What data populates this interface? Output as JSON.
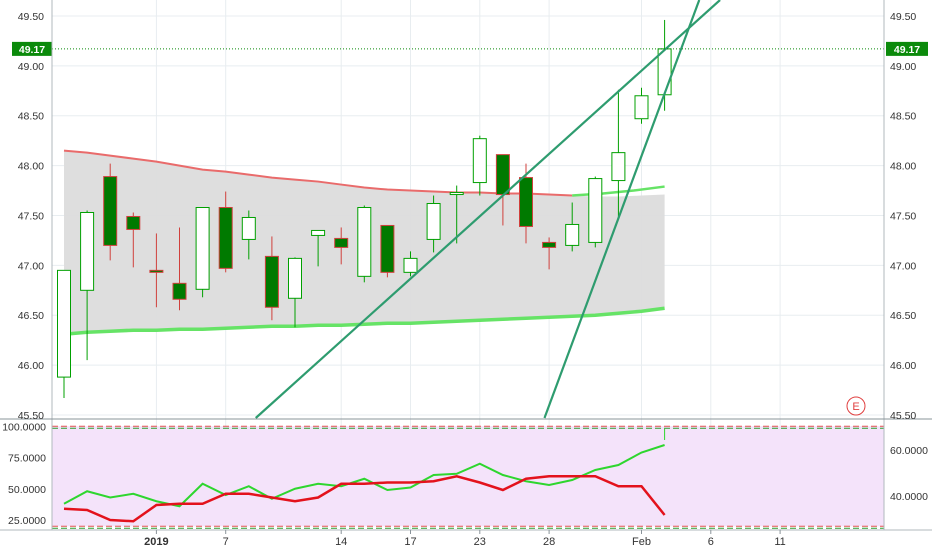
{
  "chart_data": {
    "type": "candlestick",
    "colors": {
      "up": "#00A000",
      "down_fill": "#007A00",
      "down_border": "#D0403C",
      "band_upper": "#E96B6B",
      "band_lower": "#66E366",
      "band_fill": "#DCDCDC",
      "trendline": "#2E9C6F",
      "osc_fill": "#F4E3FA",
      "osc_fast": "#2ED62E",
      "osc_slow": "#E3121C",
      "badge": "#0B8A0B",
      "grid": "#E8EDF0"
    },
    "price_axis": {
      "ylim": [
        45.47,
        49.66
      ],
      "ticks": [
        "45.50",
        "46.00",
        "46.50",
        "47.00",
        "47.50",
        "48.00",
        "48.50",
        "49.00",
        "49.50"
      ],
      "last_price": 49.17,
      "last_price_label": "49.17"
    },
    "x_axis": {
      "ticks": [
        {
          "label": "2019",
          "index": 4
        },
        {
          "label": "7",
          "index": 7
        },
        {
          "label": "14",
          "index": 12
        },
        {
          "label": "17",
          "index": 15
        },
        {
          "label": "23",
          "index": 18
        },
        {
          "label": "28",
          "index": 21
        },
        {
          "label": "Feb",
          "index": 25
        },
        {
          "label": "6",
          "index": 28
        },
        {
          "label": "11",
          "index": 31
        }
      ]
    },
    "candles": [
      {
        "o": 45.88,
        "h": 46.95,
        "l": 45.67,
        "c": 46.95
      },
      {
        "o": 46.75,
        "h": 47.55,
        "l": 46.05,
        "c": 47.53
      },
      {
        "o": 47.89,
        "h": 48.02,
        "l": 47.05,
        "c": 47.2
      },
      {
        "o": 47.49,
        "h": 47.53,
        "l": 46.98,
        "c": 47.36
      },
      {
        "o": 46.95,
        "h": 47.32,
        "l": 46.58,
        "c": 46.93
      },
      {
        "o": 46.82,
        "h": 47.38,
        "l": 46.55,
        "c": 46.66
      },
      {
        "o": 46.76,
        "h": 47.58,
        "l": 46.68,
        "c": 47.58
      },
      {
        "o": 47.58,
        "h": 47.74,
        "l": 46.93,
        "c": 46.97
      },
      {
        "o": 47.26,
        "h": 47.55,
        "l": 47.06,
        "c": 47.48
      },
      {
        "o": 47.09,
        "h": 47.29,
        "l": 46.45,
        "c": 46.58
      },
      {
        "o": 46.67,
        "h": 47.08,
        "l": 46.38,
        "c": 47.07
      },
      {
        "o": 47.3,
        "h": 47.35,
        "l": 46.99,
        "c": 47.35
      },
      {
        "o": 47.27,
        "h": 47.38,
        "l": 47.01,
        "c": 47.18
      },
      {
        "o": 46.89,
        "h": 47.6,
        "l": 46.83,
        "c": 47.58
      },
      {
        "o": 47.4,
        "h": 47.4,
        "l": 46.88,
        "c": 46.93
      },
      {
        "o": 46.93,
        "h": 47.14,
        "l": 46.89,
        "c": 47.07
      },
      {
        "o": 47.26,
        "h": 47.7,
        "l": 47.13,
        "c": 47.62
      },
      {
        "o": 47.72,
        "h": 47.8,
        "l": 47.22,
        "c": 47.73
      },
      {
        "o": 47.83,
        "h": 48.3,
        "l": 47.7,
        "c": 48.27
      },
      {
        "o": 48.11,
        "h": 48.11,
        "l": 47.4,
        "c": 47.71
      },
      {
        "o": 47.88,
        "h": 48.02,
        "l": 47.22,
        "c": 47.39
      },
      {
        "o": 47.23,
        "h": 47.28,
        "l": 46.96,
        "c": 47.18
      },
      {
        "o": 47.2,
        "h": 47.63,
        "l": 47.14,
        "c": 47.41
      },
      {
        "o": 47.23,
        "h": 47.89,
        "l": 47.18,
        "c": 47.87
      },
      {
        "o": 47.85,
        "h": 48.76,
        "l": 47.48,
        "c": 48.13
      },
      {
        "o": 48.47,
        "h": 48.78,
        "l": 48.42,
        "c": 48.7
      },
      {
        "o": 48.71,
        "h": 49.46,
        "l": 48.55,
        "c": 49.17
      }
    ],
    "bands": {
      "upper": [
        48.15,
        48.13,
        48.1,
        48.07,
        48.04,
        48.0,
        47.96,
        47.94,
        47.91,
        47.88,
        47.86,
        47.84,
        47.81,
        47.78,
        47.76,
        47.75,
        47.74,
        47.73,
        47.73,
        47.72,
        47.72,
        47.71,
        47.7,
        47.69,
        47.69,
        47.7,
        47.71
      ],
      "lower": [
        46.31,
        46.33,
        46.34,
        46.35,
        46.35,
        46.36,
        46.36,
        46.37,
        46.38,
        46.39,
        46.39,
        46.4,
        46.4,
        46.41,
        46.42,
        46.42,
        46.43,
        46.44,
        46.45,
        46.46,
        46.47,
        46.48,
        46.49,
        46.5,
        46.52,
        46.54,
        46.57
      ],
      "upper_rising_tail": [
        47.7,
        47.72,
        47.75,
        47.79
      ]
    },
    "trendlines": [
      {
        "from": {
          "x": 8.3,
          "y": 45.47
        },
        "to": {
          "x": 28.4,
          "y": 49.66
        }
      },
      {
        "from": {
          "x": 20.8,
          "y": 45.47
        },
        "to": {
          "x": 27.5,
          "y": 49.66
        }
      }
    ],
    "oscillator": {
      "left_axis": {
        "ticks": [
          "25.0000",
          "50.0000",
          "75.0000",
          "100.0000"
        ],
        "ylim": [
          17,
          105
        ]
      },
      "right_axis": {
        "ticks": [
          "40.0000",
          "60.0000"
        ]
      },
      "upper_level": 100,
      "lower_level": 20,
      "fast": [
        38,
        48,
        43,
        46,
        40,
        36,
        54,
        45,
        52,
        42,
        50,
        54,
        52,
        58,
        49,
        51,
        61,
        62,
        70,
        61,
        56,
        53,
        57,
        65,
        69,
        79,
        85
      ],
      "slow": [
        34,
        33,
        25,
        24,
        37,
        38,
        38,
        46,
        46,
        43,
        40,
        43,
        54,
        54,
        55,
        55,
        56,
        60,
        55,
        49,
        58,
        60,
        60,
        60,
        52,
        52,
        29
      ]
    },
    "event_marker": {
      "label": "E"
    }
  }
}
